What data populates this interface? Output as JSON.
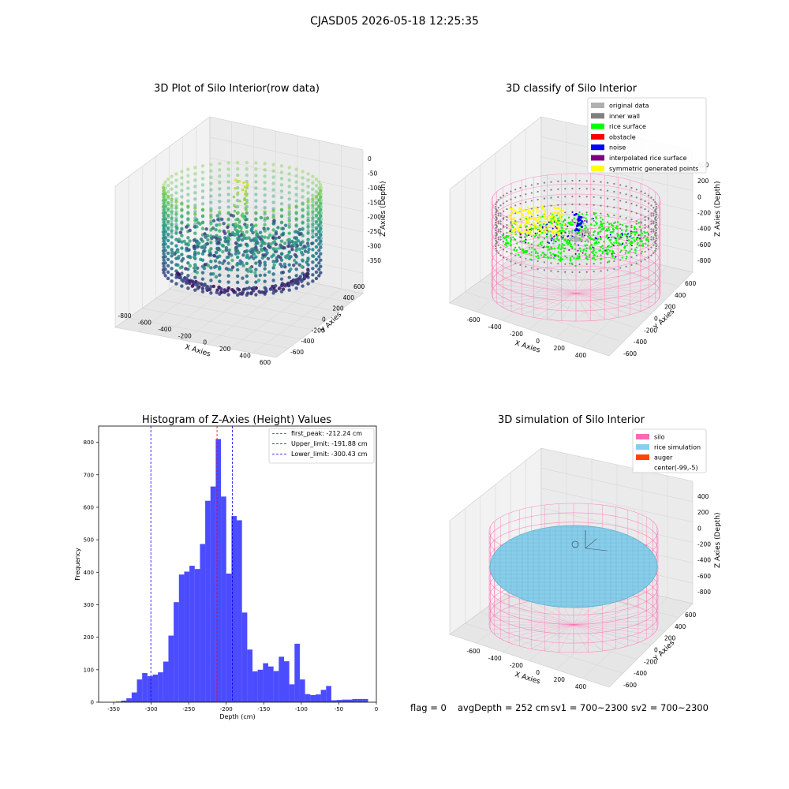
{
  "suptitle": "CJASD05 2026-05-18 12:25:35",
  "panels": {
    "raw": {
      "title": "3D Plot of Silo Interior(row data)",
      "xlabel": "X Axies",
      "ylabel": "Y Axies",
      "zlabel": "Z Axies (Depth)",
      "xticks": [
        "-800",
        "-600",
        "-400",
        "-200",
        "0",
        "200",
        "400",
        "600"
      ],
      "yticks": [
        "600",
        "400",
        "200",
        "0",
        "-200",
        "-400",
        "-600"
      ],
      "zticks": [
        "0",
        "-50",
        "-100",
        "-150",
        "-200",
        "-250",
        "-300",
        "-350"
      ]
    },
    "classify": {
      "title": "3D classify of Silo Interior",
      "xlabel": "X Axies",
      "ylabel": "Y Axies",
      "zlabel": "Z Axies (Depth)",
      "xticks": [
        "-600",
        "-400",
        "-200",
        "0",
        "200",
        "400"
      ],
      "yticks": [
        "600",
        "400",
        "200",
        "0",
        "-200",
        "-400",
        "-600"
      ],
      "zticks": [
        "400",
        "200",
        "0",
        "-200",
        "-400",
        "-600",
        "-800"
      ],
      "legend": [
        {
          "label": "original data",
          "color": "#b0b0b0"
        },
        {
          "label": "inner wall",
          "color": "#808080"
        },
        {
          "label": "rice surface",
          "color": "#00ff00"
        },
        {
          "label": "obstacle",
          "color": "#ff0000"
        },
        {
          "label": "noise",
          "color": "#0000ff"
        },
        {
          "label": "interpolated rice surface",
          "color": "#800080"
        },
        {
          "label": "symmetric generated points",
          "color": "#ffff00"
        }
      ]
    },
    "simulation": {
      "title": "3D simulation of Silo Interior",
      "xlabel": "X Axies",
      "ylabel": "Y Axies",
      "zlabel": "Z Axies (Depth)",
      "xticks": [
        "-600",
        "-400",
        "-200",
        "0",
        "200",
        "400"
      ],
      "yticks": [
        "600",
        "400",
        "200",
        "0",
        "-200",
        "-400",
        "-600"
      ],
      "zticks": [
        "400",
        "200",
        "0",
        "-200",
        "-400",
        "-600",
        "-800"
      ],
      "legend": [
        {
          "label": "silo",
          "color": "#ff69b4"
        },
        {
          "label": "rice simulation",
          "color": "#87ceeb"
        },
        {
          "label": "auger",
          "color": "#ff4500"
        },
        {
          "label": "center(-99,-5)",
          "color": "#ffffff"
        }
      ]
    }
  },
  "footer": {
    "flag": "flag = 0",
    "avg": "avgDepth = 252 cm",
    "sv1": "sv1 = 700~2300",
    "sv2": "sv2 = 700~2300"
  },
  "chart_data": {
    "type": "bar",
    "title": "Histogram of Z-Axies (Height) Values",
    "xlabel": "Depth (cm)",
    "ylabel": "Frequency",
    "xlim": [
      -370,
      0
    ],
    "ylim": [
      0,
      850
    ],
    "xticks": [
      -350,
      -300,
      -250,
      -200,
      -150,
      -100,
      -50,
      0
    ],
    "yticks": [
      0,
      100,
      200,
      300,
      400,
      500,
      600,
      700,
      800
    ],
    "bar_color": "#0000ff",
    "bin_edges": [
      -347,
      -340,
      -333,
      -326,
      -319,
      -312,
      -305,
      -298,
      -291,
      -284,
      -277,
      -270,
      -263,
      -256,
      -249,
      -242,
      -235,
      -228,
      -221,
      -214,
      -207,
      -200,
      -193,
      -186,
      -179,
      -172,
      -165,
      -158,
      -151,
      -144,
      -137,
      -130,
      -123,
      -116,
      -109,
      -102,
      -95,
      -88,
      -81,
      -74,
      -67,
      -60,
      -53,
      -46,
      -39,
      -32,
      -25,
      -18,
      -11
    ],
    "values": [
      2,
      5,
      12,
      30,
      70,
      90,
      80,
      85,
      92,
      125,
      205,
      308,
      393,
      402,
      420,
      410,
      487,
      620,
      664,
      810,
      633,
      396,
      573,
      560,
      276,
      162,
      95,
      100,
      120,
      110,
      96,
      140,
      126,
      55,
      180,
      70,
      25,
      22,
      24,
      38,
      50,
      6,
      7,
      8,
      8,
      10,
      10,
      10
    ],
    "reference_lines": [
      {
        "name": "first_peak: -212.24 cm",
        "x": -212.24,
        "color": "#ff0000"
      },
      {
        "name": "Upper_limit: -191.88 cm",
        "x": -191.88,
        "color": "#0000ff"
      },
      {
        "name": "Lower_limit: -300.43 cm",
        "x": -300.43,
        "color": "#0000ff"
      }
    ],
    "legend_position": "top-right"
  }
}
